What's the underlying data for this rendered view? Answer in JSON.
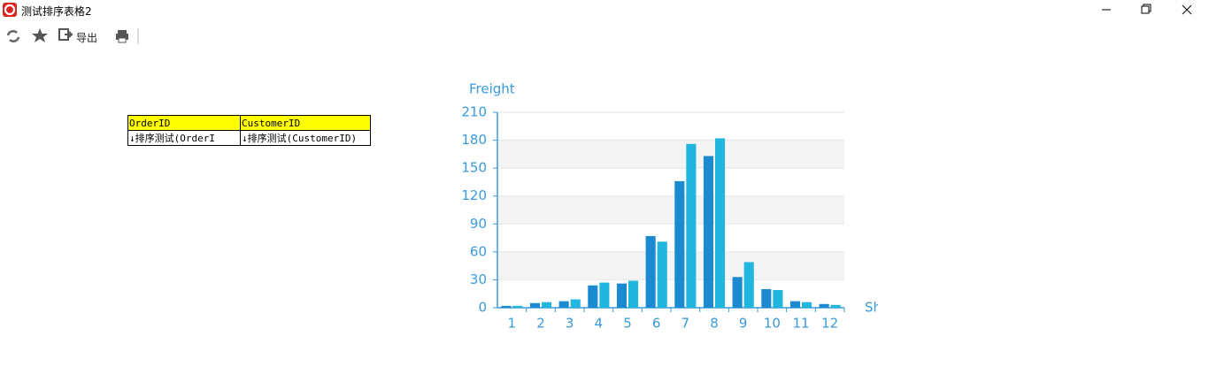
{
  "window": {
    "title": "测试排序表格2"
  },
  "toolbar": {
    "export": "导出"
  },
  "table": {
    "header": [
      "OrderID",
      "CustomerID"
    ],
    "rows": [
      [
        "↓排序测试(OrderI",
        "↓排序测试(CustomerID)"
      ]
    ]
  },
  "chart_data": {
    "type": "bar",
    "y_label": "Freight",
    "x_label": "Sh",
    "categories": [
      "1",
      "2",
      "3",
      "4",
      "5",
      "6",
      "7",
      "8",
      "9",
      "10",
      "11",
      "12"
    ],
    "series": [
      {
        "color": "#1c8ad0",
        "values": [
          2,
          5,
          7,
          24,
          26,
          77,
          136,
          163,
          33,
          20,
          7,
          4
        ]
      },
      {
        "color": "#20b6dd",
        "values": [
          2,
          6,
          9,
          27,
          29,
          71,
          176,
          182,
          49,
          19,
          6,
          3
        ]
      }
    ],
    "ylim": [
      0,
      210
    ],
    "yticks": [
      0,
      30,
      60,
      90,
      120,
      150,
      180,
      210
    ],
    "grid": true
  }
}
